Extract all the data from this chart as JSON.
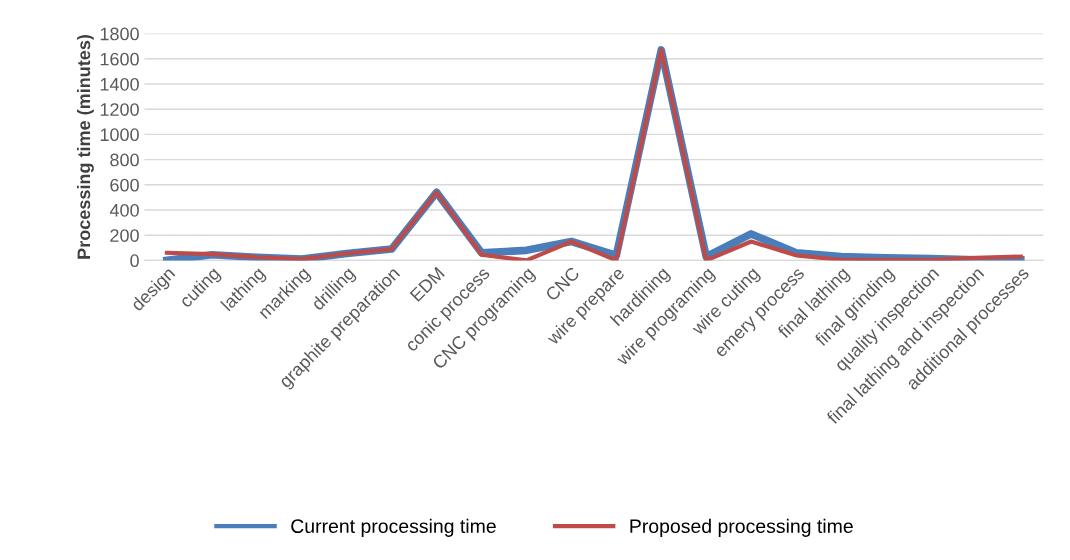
{
  "chart_data": {
    "type": "line",
    "ylabel": "Processing time (minutes)",
    "categories": [
      "design",
      "cuting",
      "lathing",
      "marking",
      "drilling",
      "graphite preparation",
      "EDM",
      "conic process",
      "CNC programing",
      "CNC",
      "wire prepare",
      "hardining",
      "wire programing",
      "wire cuting",
      "emery process",
      "final lathing",
      "final grinding",
      "quality inspection",
      "final lathing and inspection",
      "additional processes"
    ],
    "series": [
      {
        "name": "Current processing time",
        "color": "#4a7ebb",
        "values": [
          0,
          45,
          25,
          10,
          55,
          90,
          540,
          60,
          80,
          150,
          40,
          1670,
          30,
          210,
          60,
          30,
          20,
          15,
          5,
          5
        ]
      },
      {
        "name": "Proposed processing time",
        "color": "#be4b48",
        "values": [
          60,
          50,
          25,
          10,
          55,
          90,
          540,
          45,
          0,
          150,
          0,
          1670,
          0,
          150,
          40,
          5,
          5,
          5,
          20,
          30
        ]
      }
    ],
    "ylim": [
      0,
      1800
    ],
    "yticks": [
      0,
      200,
      400,
      600,
      800,
      1000,
      1200,
      1400,
      1600,
      1800
    ],
    "grid": "y",
    "legend": "bottom",
    "marker": "none",
    "line_style": "solid"
  }
}
